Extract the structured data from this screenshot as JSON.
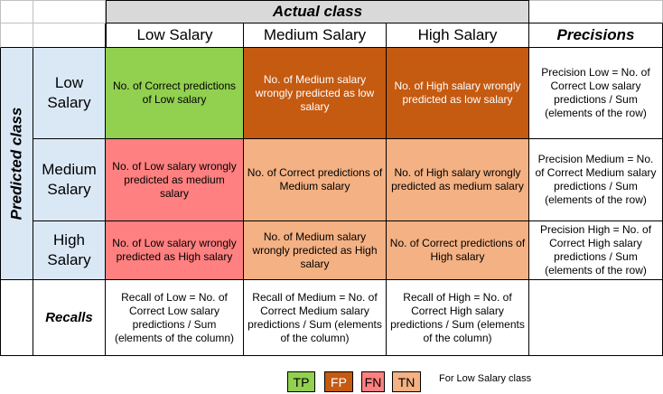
{
  "header": {
    "actual_class": "Actual class",
    "predicted_class": "Predicted class",
    "precisions": "Precisions",
    "recalls": "Recalls"
  },
  "columns": [
    "Low Salary",
    "Medium Salary",
    "High Salary"
  ],
  "rows": [
    {
      "label": "Low\nSalary",
      "cells": [
        "No. of Correct predictions of Low salary",
        "No. of Medium salary wrongly predicted as low salary",
        "No. of High salary wrongly  predicted as low salary"
      ],
      "precision": "Precision Low = No. of Correct Low salary predictions / Sum (elements of the row)"
    },
    {
      "label": "Medium\nSalary",
      "cells": [
        "No. of Low salary wrongly  predicted as medium salary",
        "No. of Correct predictions of Medium salary",
        "No. of High salary wrongly  predicted as medium salary"
      ],
      "precision": "Precision Medium = No. of Correct Medium salary predictions / Sum (elements of the row)"
    },
    {
      "label": "High\nSalary",
      "cells": [
        "No. of Low salary wrongly predicted as High salary",
        "No. of Medium salary wrongly predicted as High salary",
        "No. of Correct predictions of High salary"
      ],
      "precision": "Precision High = No. of Correct High salary predictions / Sum (elements of the row)"
    }
  ],
  "recall_cells": [
    "Recall of Low = No. of Correct Low salary predictions / Sum (elements of the column)",
    "Recall of Medium = No. of Correct Medium salary predictions / Sum (elements of the column)",
    "Recall of High = No. of Correct High salary predictions / Sum (elements of the column)"
  ],
  "legend": {
    "tp": "TP",
    "fp": "FP",
    "fn": "FN",
    "tn": "TN",
    "note": "For Low Salary class"
  },
  "colors": {
    "tp": "#92d050",
    "fp": "#c55a11",
    "fn": "#ff8080",
    "tn": "#f4b183",
    "header_gray": "#d9d9d9",
    "predicted_blue": "#dae8f6"
  }
}
